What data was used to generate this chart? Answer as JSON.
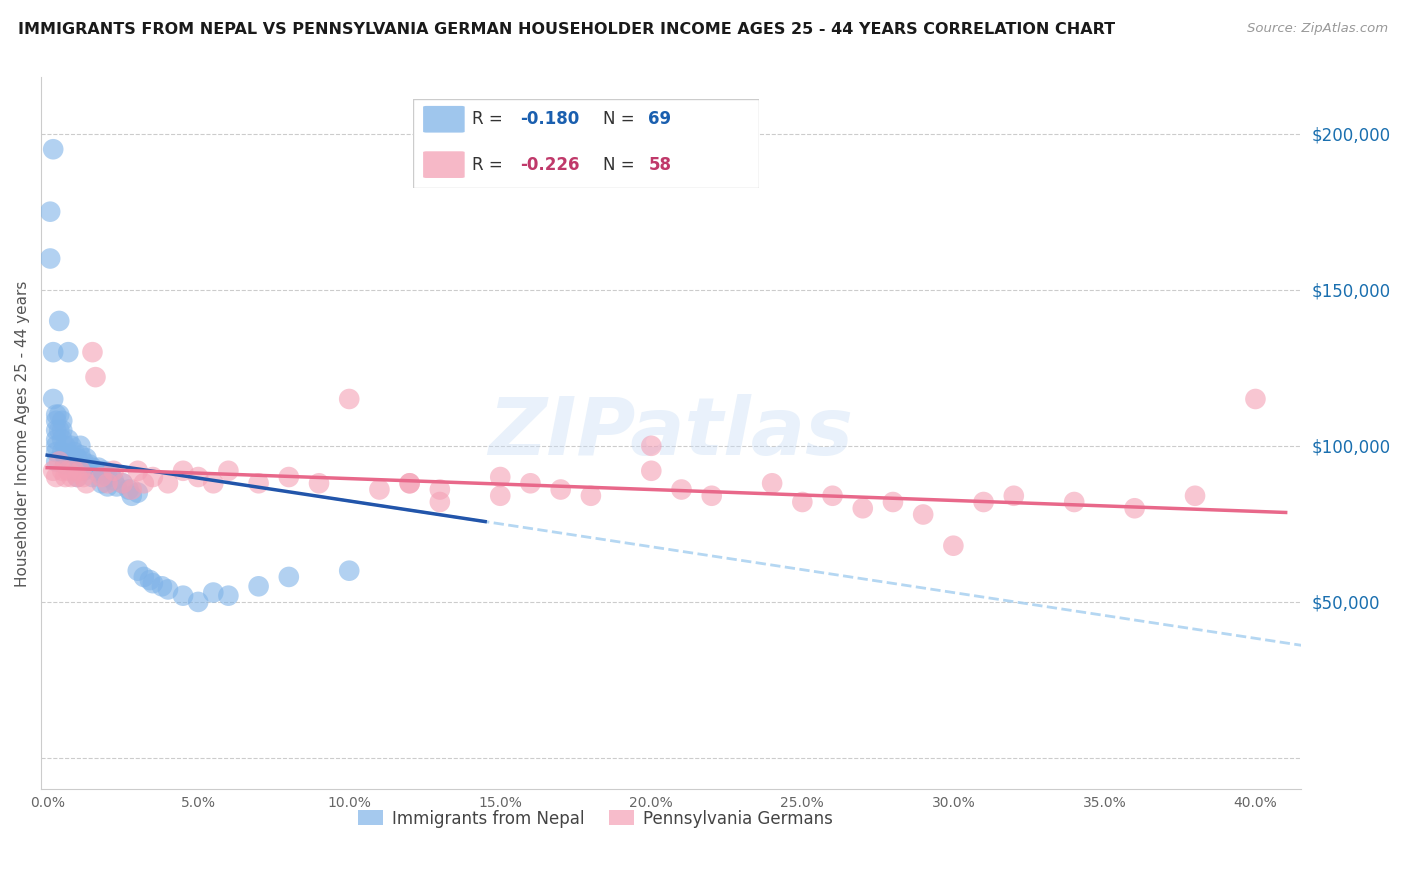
{
  "title": "IMMIGRANTS FROM NEPAL VS PENNSYLVANIA GERMAN HOUSEHOLDER INCOME AGES 25 - 44 YEARS CORRELATION CHART",
  "source": "Source: ZipAtlas.com",
  "ylabel_ticks": [
    0,
    50000,
    100000,
    150000,
    200000
  ],
  "ylabel_labels": [
    "",
    "$50,000",
    "$100,000",
    "$150,000",
    "$200,000"
  ],
  "xlim": [
    -0.002,
    0.415
  ],
  "ylim": [
    -10000,
    218000
  ],
  "ylabel": "Householder Income Ages 25 - 44 years",
  "legend_blue_label": "Immigrants from Nepal",
  "legend_pink_label": "Pennsylvania Germans",
  "blue_color": "#7fb3e8",
  "pink_color": "#f4a0b5",
  "blue_line_color": "#2255aa",
  "pink_line_color": "#e8688a",
  "blue_dash_color": "#a8d0f0",
  "watermark": "ZIPatlas",
  "nepal_x": [
    0.001,
    0.001,
    0.002,
    0.002,
    0.002,
    0.003,
    0.003,
    0.003,
    0.003,
    0.003,
    0.003,
    0.003,
    0.004,
    0.004,
    0.004,
    0.005,
    0.005,
    0.005,
    0.005,
    0.006,
    0.006,
    0.006,
    0.007,
    0.007,
    0.007,
    0.008,
    0.008,
    0.008,
    0.009,
    0.009,
    0.01,
    0.01,
    0.01,
    0.011,
    0.011,
    0.012,
    0.012,
    0.013,
    0.013,
    0.014,
    0.015,
    0.015,
    0.016,
    0.017,
    0.018,
    0.018,
    0.019,
    0.02,
    0.02,
    0.021,
    0.022,
    0.023,
    0.025,
    0.027,
    0.028,
    0.03,
    0.03,
    0.032,
    0.034,
    0.035,
    0.038,
    0.04,
    0.045,
    0.05,
    0.055,
    0.06,
    0.07,
    0.08,
    0.1
  ],
  "nepal_y": [
    175000,
    160000,
    195000,
    130000,
    115000,
    110000,
    108000,
    105000,
    102000,
    100000,
    98000,
    95000,
    140000,
    110000,
    105000,
    108000,
    105000,
    102000,
    98000,
    100000,
    97000,
    94000,
    130000,
    102000,
    96000,
    100000,
    97000,
    94000,
    98000,
    95000,
    96000,
    93000,
    90000,
    100000,
    97000,
    95000,
    92000,
    96000,
    93000,
    94000,
    93000,
    90000,
    92000,
    93000,
    91000,
    88000,
    92000,
    90000,
    87000,
    91000,
    89000,
    87000,
    88000,
    86000,
    84000,
    85000,
    60000,
    58000,
    57000,
    56000,
    55000,
    54000,
    52000,
    50000,
    53000,
    52000,
    55000,
    58000,
    60000
  ],
  "pa_x": [
    0.002,
    0.003,
    0.004,
    0.005,
    0.006,
    0.007,
    0.008,
    0.009,
    0.01,
    0.011,
    0.012,
    0.013,
    0.015,
    0.016,
    0.018,
    0.02,
    0.022,
    0.025,
    0.028,
    0.03,
    0.032,
    0.035,
    0.04,
    0.045,
    0.05,
    0.055,
    0.06,
    0.07,
    0.08,
    0.09,
    0.1,
    0.11,
    0.12,
    0.13,
    0.15,
    0.16,
    0.17,
    0.18,
    0.2,
    0.21,
    0.22,
    0.24,
    0.26,
    0.28,
    0.3,
    0.32,
    0.34,
    0.36,
    0.38,
    0.4,
    0.15,
    0.2,
    0.13,
    0.12,
    0.25,
    0.27,
    0.29,
    0.31
  ],
  "pa_y": [
    92000,
    90000,
    95000,
    92000,
    90000,
    92000,
    90000,
    92000,
    90000,
    92000,
    90000,
    88000,
    130000,
    122000,
    90000,
    88000,
    92000,
    88000,
    86000,
    92000,
    88000,
    90000,
    88000,
    92000,
    90000,
    88000,
    92000,
    88000,
    90000,
    88000,
    115000,
    86000,
    88000,
    86000,
    90000,
    88000,
    86000,
    84000,
    100000,
    86000,
    84000,
    88000,
    84000,
    82000,
    68000,
    84000,
    82000,
    80000,
    84000,
    115000,
    84000,
    92000,
    82000,
    88000,
    82000,
    80000,
    78000,
    82000
  ]
}
